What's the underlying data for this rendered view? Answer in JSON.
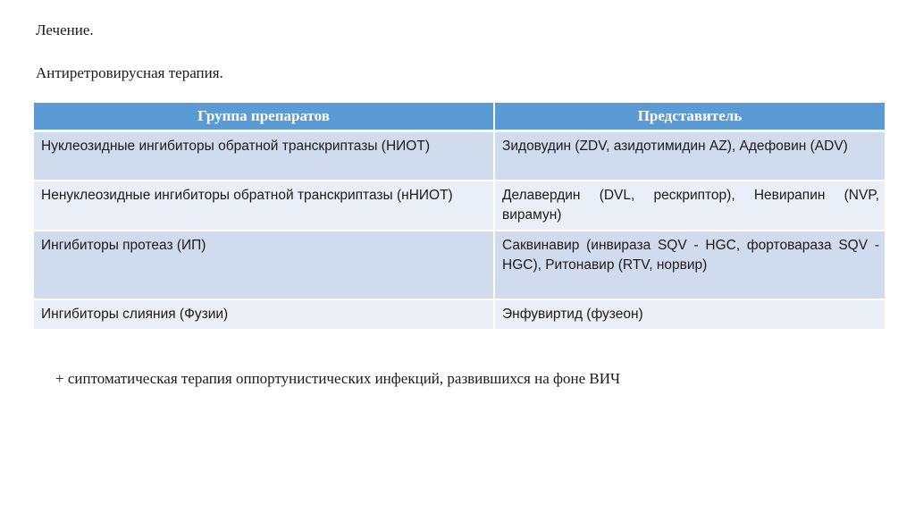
{
  "title": "Лечение.",
  "subtitle": "Антиретровирусная терапия.",
  "colors": {
    "header": "#5b9bd5",
    "row_odd": "#d0dbee",
    "row_even": "#e9eef7"
  },
  "table": {
    "headers": [
      "Группа препаратов",
      "Представитель"
    ],
    "rows": [
      [
        "Нуклеозидные ингибиторы обратной транскриптазы (НИОТ)",
        "Зидовудин (ZDV, азидотимидин AZ), Адефовин (ADV)"
      ],
      [
        "Ненуклеозидные ингибиторы обратной транскриптазы (нНИОТ)",
        "Делавердин (DVL, рескриптор), Невирапин (NVP, вирамун)"
      ],
      [
        "Ингибиторы протеаз (ИП)",
        "Саквинавир (инвираза SQV - HGC, фортовараза SQV - HGC), Ритонавир (RTV, норвир)"
      ],
      [
        "Ингибиторы слияния (Фузии)",
        "Энфувиртид (фузеон)"
      ]
    ]
  },
  "footer": "+ сиптоматическая терапия оппортунистических инфекций, развившихся на фоне ВИЧ"
}
